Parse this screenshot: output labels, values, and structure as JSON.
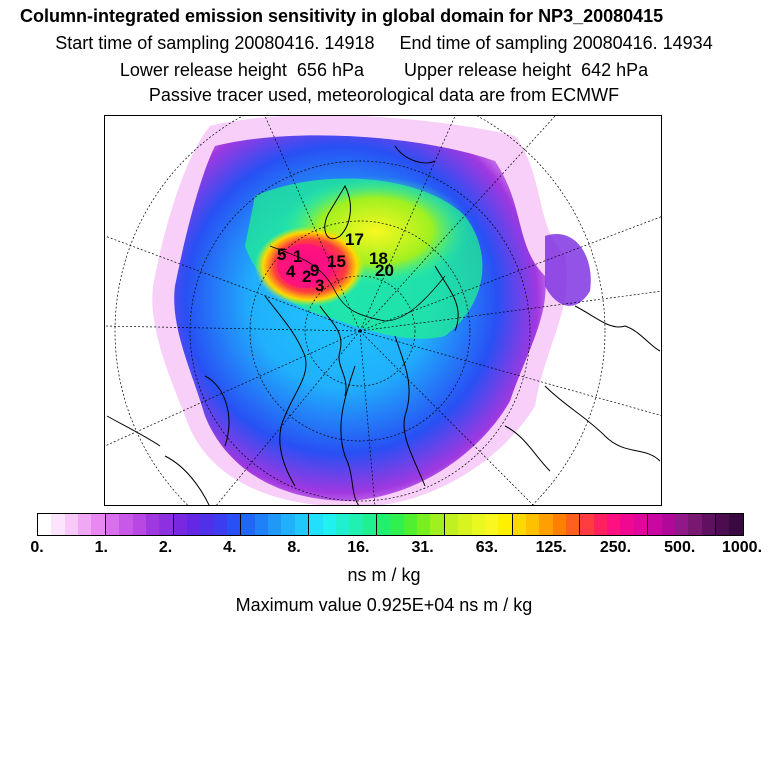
{
  "header": {
    "title": "Column-integrated emission sensitivity in global domain for NP3_20080415",
    "sampling": "Start time of sampling 20080416. 14918     End time of sampling 20080416. 14934",
    "release": "Lower release height  656 hPa        Upper release height  642 hPa",
    "tracer": "Passive tracer used, meteorological data are from ECMWF"
  },
  "map": {
    "projection": "polar stereographic (north pole)",
    "track_labels": [
      "5",
      "1",
      "4",
      "2",
      "3",
      "9",
      "15",
      "17",
      "18",
      "20"
    ]
  },
  "colorbar": {
    "tick_labels": [
      "0.",
      "1.",
      "2.",
      "4.",
      "8.",
      "16.",
      "31.",
      "63.",
      "125.",
      "250.",
      "500.",
      "1000."
    ],
    "colors": [
      "#ffffff",
      "#fce4fc",
      "#f8c8f8",
      "#f0a8f4",
      "#e888f0",
      "#d870ec",
      "#c858e8",
      "#b848e4",
      "#a038e0",
      "#8c30e0",
      "#7828e0",
      "#6428e4",
      "#5030e8",
      "#3c3cf0",
      "#2850f4",
      "#2068f4",
      "#2080f8",
      "#2098f8",
      "#20b0fc",
      "#20c8fc",
      "#20e0fc",
      "#20f0f0",
      "#20f0d0",
      "#20f0b0",
      "#20f090",
      "#20f070",
      "#30f050",
      "#50f030",
      "#78f020",
      "#a0f020",
      "#c0f020",
      "#d8f420",
      "#e8f820",
      "#f8f820",
      "#fff000",
      "#ffd800",
      "#ffc000",
      "#ffa000",
      "#ff8000",
      "#ff6020",
      "#ff3c40",
      "#ff2060",
      "#ff1080",
      "#f00890",
      "#e0089c",
      "#c808a0",
      "#b00898",
      "#901888",
      "#781870",
      "#601060",
      "#4c0c50",
      "#380840"
    ],
    "units": "ns m / kg"
  },
  "maximum": "Maximum value  0.925E+04 ns m / kg"
}
